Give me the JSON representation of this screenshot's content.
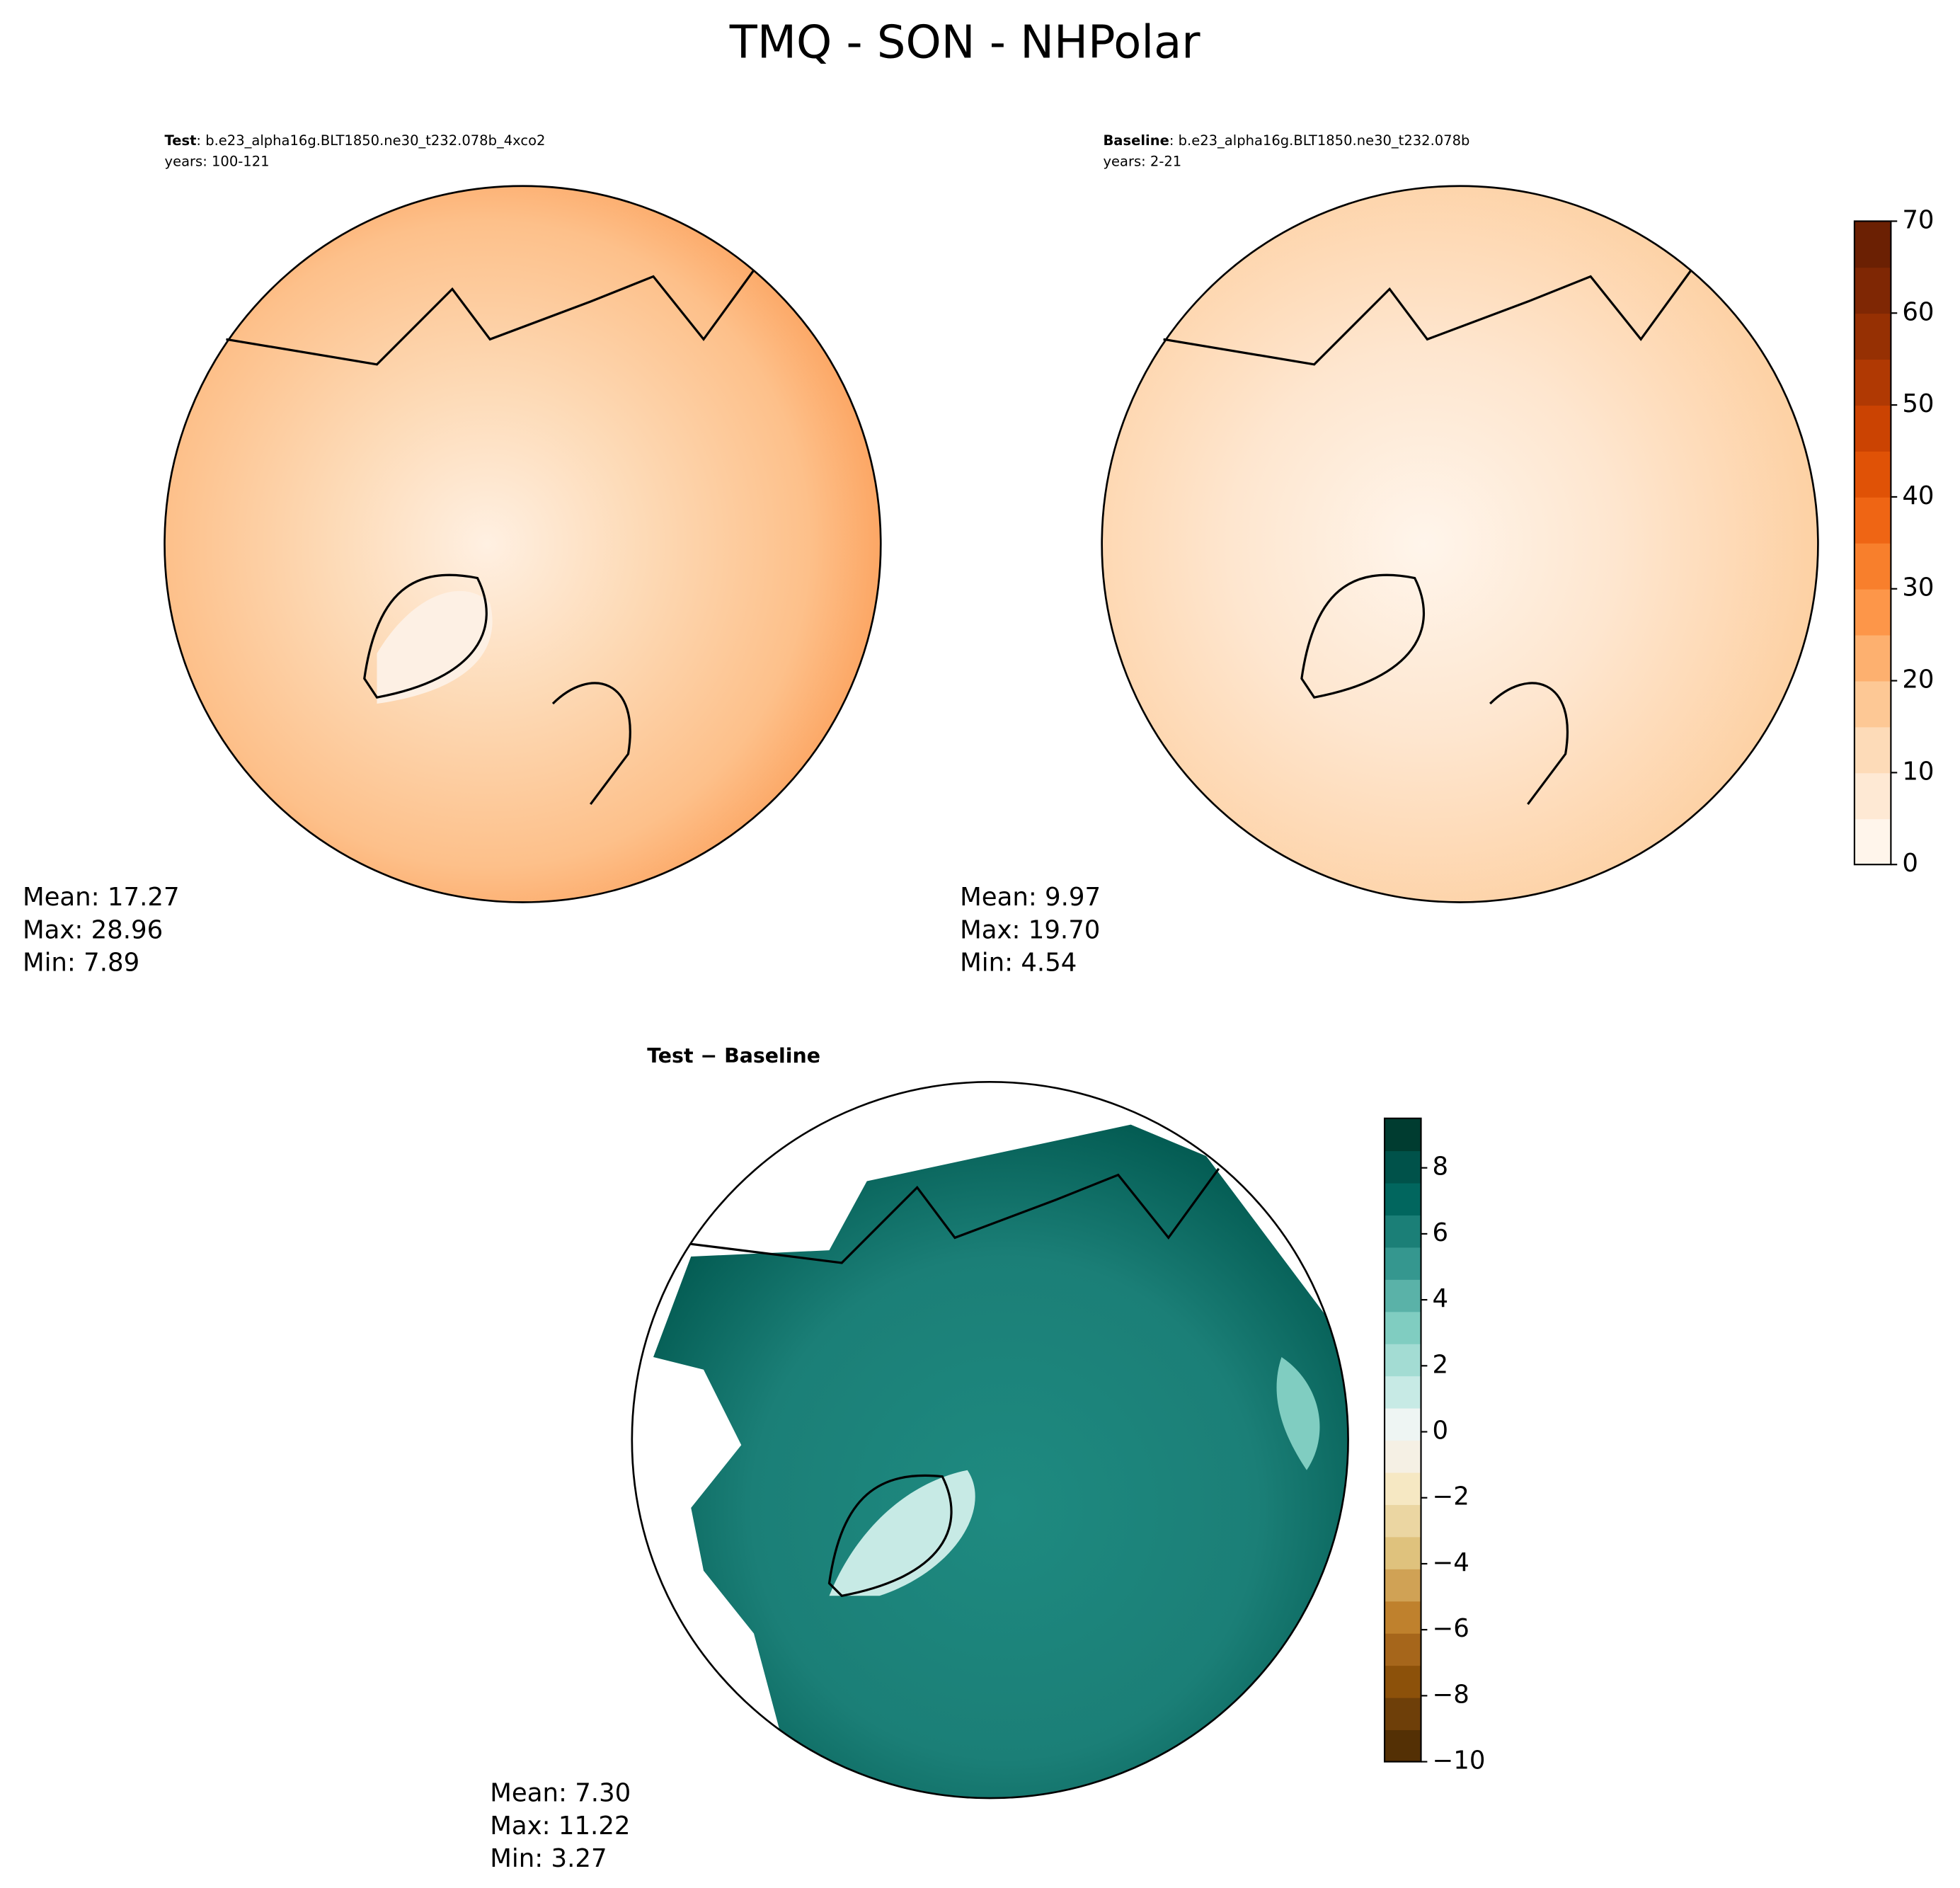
{
  "title": "TMQ - SON - NHPolar",
  "panels": [
    {
      "label": "Test",
      "name": ": b.e23_alpha16g.BLT1850.ne30_t232.078b_4xco2",
      "years": "years: 100-121",
      "stats": [
        "Mean: 17.27",
        "Max: 28.96",
        "Min:  7.89"
      ]
    },
    {
      "label": "Baseline",
      "name": ": b.e23_alpha16g.BLT1850.ne30_t232.078b",
      "years": "years: 2-21",
      "stats": [
        "Mean:  9.97",
        "Max: 19.70",
        "Min:  4.54"
      ]
    },
    {
      "label": "Test − Baseline",
      "stats": [
        "Mean:  7.30",
        "Max: 11.22",
        "Min:  3.27"
      ]
    }
  ],
  "colorbars": [
    {
      "lim": [
        0,
        70
      ],
      "ticks": [
        0,
        10,
        20,
        30,
        40,
        50,
        60,
        70
      ],
      "colors": [
        "#fff5eb",
        "#fee9d4",
        "#fddbb8",
        "#fdc895",
        "#fdb06f",
        "#fd9649",
        "#f87f2c",
        "#ef6514",
        "#e05206",
        "#cb4302",
        "#b03903",
        "#963003",
        "#7f2704",
        "#6b2003"
      ]
    },
    {
      "lim": [
        -10,
        9.5
      ],
      "ticks": [
        {
          "value": -10,
          "label": "−10"
        },
        {
          "value": -8,
          "label": "−8"
        },
        {
          "value": -6,
          "label": "−6"
        },
        {
          "value": -4,
          "label": "−4"
        },
        {
          "value": -2,
          "label": "−2"
        },
        0,
        2,
        4,
        6,
        8
      ],
      "colors": [
        "#543005",
        "#6e3f09",
        "#8c510a",
        "#a6661b",
        "#bf812d",
        "#d0a255",
        "#dfc27d",
        "#ebd6a2",
        "#f6e8c3",
        "#f5f0e4",
        "#eef5f3",
        "#c7eae5",
        "#a3dcd3",
        "#80cdc1",
        "#5ab2a8",
        "#35978f",
        "#1b7f77",
        "#01665e",
        "#00524a",
        "#003c30"
      ]
    }
  ]
}
